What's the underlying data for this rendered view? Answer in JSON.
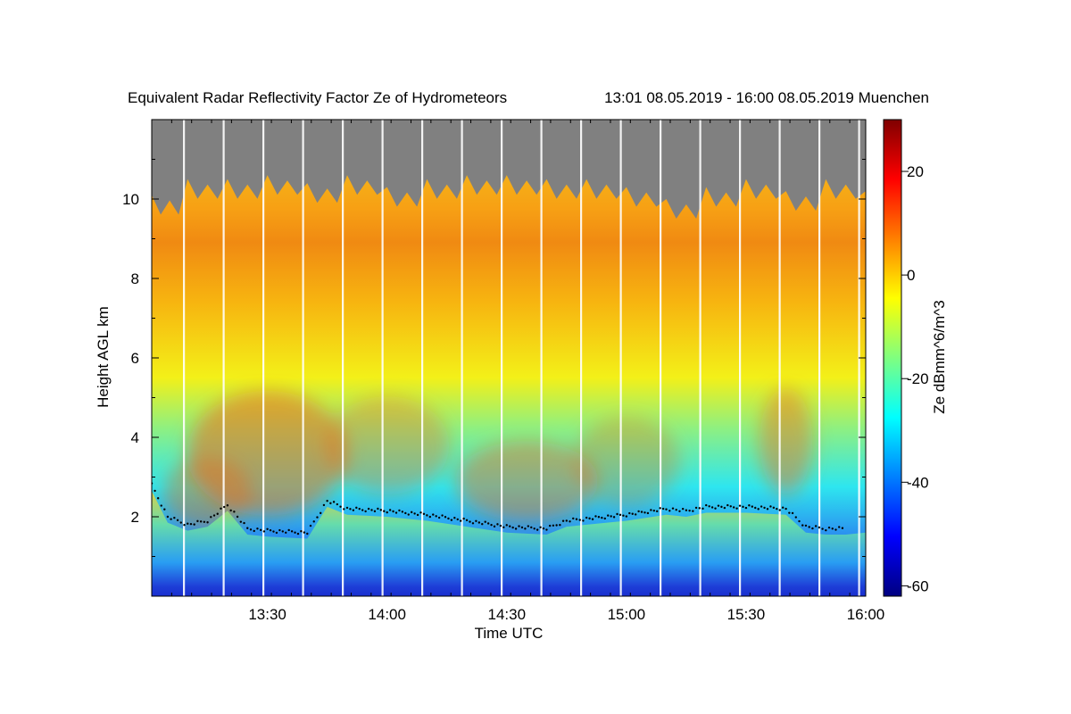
{
  "chart_data": {
    "type": "heatmap",
    "title": "Equivalent Radar Reflectivity Factor Ze of Hydrometeors",
    "subtitle": "13:01 08.05.2019 - 16:00 08.05.2019 Muenchen",
    "xlabel": "Time UTC",
    "ylabel": "Height AGL km",
    "x_range": [
      "13:01",
      "16:00"
    ],
    "x_tick_labels": [
      "13:30",
      "14:00",
      "14:30",
      "15:00",
      "15:30",
      "16:00"
    ],
    "ylim": [
      0,
      12
    ],
    "y_tick_values": [
      2,
      4,
      6,
      8,
      10
    ],
    "colorbar": {
      "label": "Ze dBmm^6/m^3",
      "range": [
        -62,
        30
      ],
      "tick_values": [
        20,
        0,
        -20,
        -40,
        -60
      ],
      "colormap": "jet"
    },
    "cloud_top_km": [
      [
        "13:01",
        10.1
      ],
      [
        "13:10",
        10.5
      ],
      [
        "13:20",
        10.5
      ],
      [
        "13:30",
        10.6
      ],
      [
        "13:40",
        10.4
      ],
      [
        "13:50",
        10.6
      ],
      [
        "14:00",
        10.3
      ],
      [
        "14:10",
        10.5
      ],
      [
        "14:20",
        10.6
      ],
      [
        "14:30",
        10.6
      ],
      [
        "14:40",
        10.5
      ],
      [
        "14:50",
        10.5
      ],
      [
        "15:00",
        10.3
      ],
      [
        "15:10",
        10.0
      ],
      [
        "15:20",
        10.3
      ],
      [
        "15:30",
        10.5
      ],
      [
        "15:40",
        10.2
      ],
      [
        "15:50",
        10.5
      ],
      [
        "16:00",
        10.2
      ]
    ],
    "melting_layer_km": [
      [
        "13:01",
        2.8
      ],
      [
        "13:05",
        2.0
      ],
      [
        "13:10",
        1.8
      ],
      [
        "13:15",
        1.9
      ],
      [
        "13:20",
        2.3
      ],
      [
        "13:25",
        1.7
      ],
      [
        "13:30",
        1.65
      ],
      [
        "13:40",
        1.6
      ],
      [
        "13:45",
        2.4
      ],
      [
        "13:50",
        2.2
      ],
      [
        "14:00",
        2.15
      ],
      [
        "14:10",
        2.05
      ],
      [
        "14:20",
        1.9
      ],
      [
        "14:30",
        1.75
      ],
      [
        "14:40",
        1.7
      ],
      [
        "14:45",
        1.9
      ],
      [
        "14:50",
        1.95
      ],
      [
        "15:00",
        2.05
      ],
      [
        "15:10",
        2.2
      ],
      [
        "15:15",
        2.15
      ],
      [
        "15:20",
        2.25
      ],
      [
        "15:30",
        2.25
      ],
      [
        "15:40",
        2.2
      ],
      [
        "15:45",
        1.75
      ],
      [
        "15:50",
        1.7
      ],
      [
        "15:55",
        1.7
      ]
    ]
  }
}
